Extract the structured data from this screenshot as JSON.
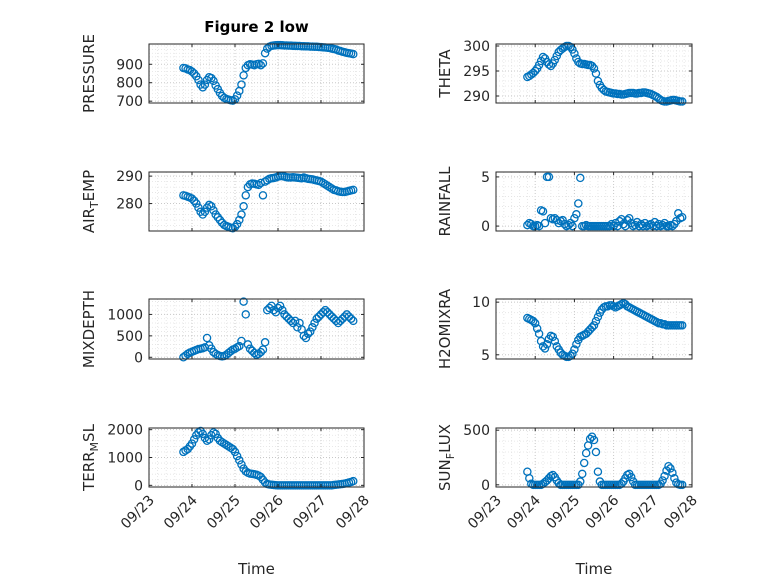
{
  "figure": {
    "title": "Figure 2 low",
    "xlabel": "Time",
    "marker_color": "#0072BD"
  },
  "chart_data": [
    {
      "type": "scatter",
      "id": "pressure",
      "title": "Figure 2 low",
      "ylabel": "PRESSURE",
      "xlim": [
        "09/23",
        "09/28"
      ],
      "ylim": [
        690,
        1010
      ],
      "yticks": [
        700,
        800,
        900
      ],
      "x_days": [
        0.8,
        0.85,
        0.9,
        0.95,
        1.0,
        1.05,
        1.1,
        1.15,
        1.2,
        1.25,
        1.3,
        1.35,
        1.4,
        1.45,
        1.5,
        1.55,
        1.6,
        1.65,
        1.7,
        1.75,
        1.8,
        1.85,
        1.9,
        1.95,
        2.0,
        2.05,
        2.1,
        2.15,
        2.2,
        2.25,
        2.3,
        2.35,
        2.4,
        2.45,
        2.5,
        2.55,
        2.6,
        2.65,
        2.7,
        2.75,
        2.8,
        2.85,
        2.9,
        2.95,
        3.0,
        3.05,
        3.1,
        3.15,
        3.2,
        3.25,
        3.3,
        3.35,
        3.4,
        3.45,
        3.5,
        3.55,
        3.6,
        3.65,
        3.7,
        3.75,
        3.8,
        3.85,
        3.9,
        3.95,
        4.0,
        4.05,
        4.1,
        4.15,
        4.2,
        4.25,
        4.3,
        4.35,
        4.4,
        4.45,
        4.5,
        4.55,
        4.6,
        4.65,
        4.7,
        4.75
      ],
      "y": [
        880,
        878,
        872,
        868,
        860,
        850,
        835,
        815,
        790,
        775,
        790,
        815,
        830,
        825,
        810,
        785,
        765,
        745,
        728,
        718,
        712,
        708,
        705,
        703,
        710,
        730,
        755,
        790,
        840,
        880,
        895,
        900,
        898,
        895,
        900,
        902,
        895,
        905,
        960,
        985,
        995,
        1000,
        1002,
        1003,
        1004,
        1004,
        1003,
        1002,
        1002,
        1001,
        1001,
        1000,
        1000,
        999,
        999,
        998,
        998,
        997,
        997,
        996,
        996,
        995,
        995,
        994,
        993,
        992,
        991,
        990,
        988,
        985,
        983,
        980,
        975,
        972,
        968,
        965,
        962,
        960,
        958,
        955
      ]
    },
    {
      "type": "scatter",
      "id": "theta",
      "ylabel": "THETA",
      "xlim": [
        "09/23",
        "09/28"
      ],
      "ylim": [
        288.6,
        300.4
      ],
      "yticks": [
        290,
        295,
        300
      ],
      "x_days": [
        0.8,
        0.85,
        0.9,
        0.95,
        1.0,
        1.05,
        1.1,
        1.15,
        1.2,
        1.25,
        1.3,
        1.35,
        1.4,
        1.45,
        1.5,
        1.55,
        1.6,
        1.65,
        1.7,
        1.75,
        1.8,
        1.85,
        1.9,
        1.95,
        2.0,
        2.05,
        2.1,
        2.15,
        2.2,
        2.25,
        2.3,
        2.35,
        2.4,
        2.45,
        2.5,
        2.55,
        2.6,
        2.65,
        2.7,
        2.75,
        2.8,
        2.85,
        2.9,
        2.95,
        3.0,
        3.05,
        3.1,
        3.15,
        3.2,
        3.25,
        3.3,
        3.35,
        3.4,
        3.45,
        3.5,
        3.55,
        3.6,
        3.65,
        3.7,
        3.75,
        3.8,
        3.85,
        3.9,
        3.95,
        4.0,
        4.05,
        4.1,
        4.15,
        4.2,
        4.25,
        4.3,
        4.35,
        4.4,
        4.45,
        4.5,
        4.55,
        4.6,
        4.65,
        4.7,
        4.75
      ],
      "y": [
        293.8,
        294.0,
        294.3,
        294.6,
        295.0,
        295.5,
        296.2,
        297.0,
        297.8,
        297.5,
        296.8,
        296.3,
        296.0,
        296.5,
        297.2,
        298.0,
        298.8,
        299.2,
        299.5,
        299.8,
        300.0,
        300.0,
        299.8,
        299.3,
        298.5,
        297.5,
        296.8,
        296.5,
        296.4,
        296.4,
        296.3,
        296.2,
        296.2,
        296.0,
        295.5,
        294.5,
        293.0,
        292.2,
        291.6,
        291.2,
        290.9,
        290.8,
        290.7,
        290.6,
        290.5,
        290.5,
        290.4,
        290.4,
        290.3,
        290.3,
        290.4,
        290.5,
        290.6,
        290.6,
        290.6,
        290.5,
        290.5,
        290.6,
        290.6,
        290.7,
        290.7,
        290.6,
        290.5,
        290.4,
        290.2,
        290.0,
        289.8,
        289.5,
        289.2,
        289.0,
        288.9,
        288.9,
        289.0,
        289.1,
        289.2,
        289.2,
        289.1,
        289.0,
        288.9,
        288.9
      ]
    },
    {
      "type": "scatter",
      "id": "air-temp",
      "ylabel": "AIR_TEMP",
      "xlim": [
        "09/23",
        "09/28"
      ],
      "ylim": [
        270,
        291.5
      ],
      "yticks": [
        280,
        290
      ],
      "x_days": [
        0.8,
        0.85,
        0.9,
        0.95,
        1.0,
        1.05,
        1.1,
        1.15,
        1.2,
        1.25,
        1.3,
        1.35,
        1.4,
        1.45,
        1.5,
        1.55,
        1.6,
        1.65,
        1.7,
        1.75,
        1.8,
        1.85,
        1.9,
        1.95,
        2.0,
        2.05,
        2.1,
        2.15,
        2.2,
        2.25,
        2.3,
        2.35,
        2.4,
        2.45,
        2.5,
        2.55,
        2.6,
        2.65,
        2.7,
        2.75,
        2.8,
        2.85,
        2.9,
        2.95,
        3.0,
        3.05,
        3.1,
        3.15,
        3.2,
        3.25,
        3.3,
        3.35,
        3.4,
        3.45,
        3.5,
        3.55,
        3.6,
        3.65,
        3.7,
        3.75,
        3.8,
        3.85,
        3.9,
        3.95,
        4.0,
        4.05,
        4.1,
        4.15,
        4.2,
        4.25,
        4.3,
        4.35,
        4.4,
        4.45,
        4.5,
        4.55,
        4.6,
        4.65,
        4.7,
        4.75
      ],
      "y": [
        283.0,
        282.8,
        282.5,
        282.2,
        281.8,
        281.0,
        280.0,
        278.5,
        277.0,
        276.0,
        277.0,
        278.5,
        279.5,
        279.0,
        277.5,
        276.0,
        275.0,
        274.0,
        273.0,
        272.2,
        271.8,
        271.5,
        271.2,
        271.0,
        271.5,
        272.5,
        274.0,
        276.0,
        279.0,
        283.0,
        286.0,
        287.0,
        287.3,
        287.2,
        287.0,
        286.8,
        287.5,
        283.0,
        288.0,
        288.5,
        289.0,
        289.2,
        289.3,
        289.5,
        289.8,
        290.0,
        290.0,
        289.8,
        289.6,
        289.5,
        289.5,
        289.6,
        289.5,
        289.4,
        289.3,
        289.2,
        289.5,
        289.2,
        289.0,
        288.9,
        288.8,
        288.6,
        288.4,
        288.2,
        288.0,
        287.5,
        287.0,
        286.5,
        286.0,
        285.5,
        285.0,
        284.8,
        284.5,
        284.3,
        284.2,
        284.2,
        284.4,
        284.6,
        284.8,
        285.0
      ]
    },
    {
      "type": "scatter",
      "id": "rainfall",
      "ylabel": "RAINFALL",
      "xlim": [
        "09/23",
        "09/28"
      ],
      "ylim": [
        -0.5,
        5.5
      ],
      "yticks": [
        0,
        5
      ],
      "x_days": [
        0.8,
        0.85,
        0.9,
        0.95,
        1.0,
        1.05,
        1.1,
        1.15,
        1.2,
        1.25,
        1.3,
        1.35,
        1.4,
        1.45,
        1.5,
        1.55,
        1.6,
        1.65,
        1.7,
        1.75,
        1.8,
        1.85,
        1.9,
        1.95,
        2.0,
        2.05,
        2.1,
        2.15,
        2.2,
        2.25,
        2.3,
        2.35,
        2.4,
        2.45,
        2.5,
        2.55,
        2.6,
        2.65,
        2.7,
        2.75,
        2.8,
        2.85,
        2.9,
        2.95,
        3.0,
        3.05,
        3.1,
        3.15,
        3.2,
        3.25,
        3.3,
        3.35,
        3.4,
        3.45,
        3.5,
        3.55,
        3.6,
        3.65,
        3.7,
        3.75,
        3.8,
        3.85,
        3.9,
        3.95,
        4.0,
        4.05,
        4.1,
        4.15,
        4.2,
        4.25,
        4.3,
        4.35,
        4.4,
        4.45,
        4.5,
        4.55,
        4.6,
        4.65,
        4.7,
        4.75
      ],
      "y": [
        0.1,
        0.3,
        0.2,
        0.0,
        0.0,
        0.1,
        0.0,
        1.6,
        1.5,
        0.3,
        5.0,
        5.0,
        0.8,
        0.7,
        0.8,
        0.6,
        0.3,
        0.5,
        0.6,
        0.2,
        0.0,
        0.1,
        0.3,
        0.0,
        0.8,
        1.2,
        2.3,
        4.9,
        0.0,
        0.0,
        0.1,
        0.0,
        0.0,
        0.0,
        0.0,
        0.0,
        0.0,
        0.0,
        0.0,
        0.0,
        0.0,
        0.0,
        0.0,
        0.2,
        0.0,
        0.3,
        0.0,
        0.5,
        0.7,
        0.2,
        0.0,
        0.6,
        0.8,
        0.3,
        0.0,
        0.1,
        0.4,
        0.0,
        0.2,
        0.0,
        0.3,
        0.0,
        0.1,
        0.2,
        0.0,
        0.4,
        0.0,
        0.2,
        0.0,
        0.1,
        0.3,
        0.0,
        0.0,
        0.1,
        0.0,
        0.2,
        0.5,
        1.3,
        0.8,
        0.9
      ]
    },
    {
      "type": "scatter",
      "id": "mixdepth",
      "ylabel": "MIXDEPTH",
      "xlim": [
        "09/23",
        "09/28"
      ],
      "ylim": [
        -40,
        1360
      ],
      "yticks": [
        0,
        500,
        1000
      ],
      "x_days": [
        0.8,
        0.85,
        0.9,
        0.95,
        1.0,
        1.05,
        1.1,
        1.15,
        1.2,
        1.25,
        1.3,
        1.35,
        1.4,
        1.45,
        1.5,
        1.55,
        1.6,
        1.65,
        1.7,
        1.75,
        1.8,
        1.85,
        1.9,
        1.95,
        2.0,
        2.05,
        2.1,
        2.15,
        2.2,
        2.25,
        2.3,
        2.35,
        2.4,
        2.45,
        2.5,
        2.55,
        2.6,
        2.65,
        2.7,
        2.75,
        2.8,
        2.85,
        2.9,
        2.95,
        3.0,
        3.05,
        3.1,
        3.15,
        3.2,
        3.25,
        3.3,
        3.35,
        3.4,
        3.45,
        3.5,
        3.55,
        3.6,
        3.65,
        3.7,
        3.75,
        3.8,
        3.85,
        3.9,
        3.95,
        4.0,
        4.05,
        4.1,
        4.15,
        4.2,
        4.25,
        4.3,
        4.35,
        4.4,
        4.45,
        4.5,
        4.55,
        4.6,
        4.65,
        4.7,
        4.75
      ],
      "y": [
        0,
        40,
        80,
        110,
        130,
        150,
        170,
        190,
        200,
        210,
        230,
        450,
        280,
        200,
        120,
        80,
        50,
        30,
        20,
        30,
        60,
        100,
        140,
        180,
        200,
        230,
        260,
        380,
        1300,
        1000,
        300,
        200,
        150,
        100,
        60,
        80,
        120,
        180,
        350,
        1100,
        1150,
        1200,
        1100,
        1050,
        1150,
        1200,
        1100,
        1000,
        950,
        900,
        850,
        800,
        850,
        700,
        800,
        650,
        500,
        450,
        550,
        600,
        700,
        800,
        900,
        950,
        1000,
        1050,
        1100,
        1050,
        1000,
        950,
        900,
        850,
        800,
        850,
        900,
        950,
        1000,
        950,
        900,
        850
      ]
    },
    {
      "type": "scatter",
      "id": "h2omixra",
      "ylabel": "H2OMIXRA",
      "xlim": [
        "09/23",
        "09/28"
      ],
      "ylim": [
        4.6,
        10.3
      ],
      "yticks": [
        5,
        10
      ],
      "x_days": [
        0.8,
        0.85,
        0.9,
        0.95,
        1.0,
        1.05,
        1.1,
        1.15,
        1.2,
        1.25,
        1.3,
        1.35,
        1.4,
        1.45,
        1.5,
        1.55,
        1.6,
        1.65,
        1.7,
        1.75,
        1.8,
        1.85,
        1.9,
        1.95,
        2.0,
        2.05,
        2.1,
        2.15,
        2.2,
        2.25,
        2.3,
        2.35,
        2.4,
        2.45,
        2.5,
        2.55,
        2.6,
        2.65,
        2.7,
        2.75,
        2.8,
        2.85,
        2.9,
        2.95,
        3.0,
        3.05,
        3.1,
        3.15,
        3.2,
        3.25,
        3.3,
        3.35,
        3.4,
        3.45,
        3.5,
        3.55,
        3.6,
        3.65,
        3.7,
        3.75,
        3.8,
        3.85,
        3.9,
        3.95,
        4.0,
        4.05,
        4.1,
        4.15,
        4.2,
        4.25,
        4.3,
        4.35,
        4.4,
        4.45,
        4.5,
        4.55,
        4.6,
        4.65,
        4.7,
        4.75
      ],
      "y": [
        8.5,
        8.4,
        8.3,
        8.2,
        8.0,
        7.5,
        7.0,
        6.3,
        5.8,
        5.6,
        6.0,
        6.5,
        6.8,
        6.7,
        6.3,
        5.8,
        5.5,
        5.2,
        5.0,
        4.9,
        4.8,
        4.8,
        4.9,
        5.1,
        5.5,
        6.0,
        6.4,
        6.7,
        6.8,
        6.9,
        7.0,
        7.2,
        7.4,
        7.6,
        7.8,
        8.2,
        8.6,
        9.0,
        9.3,
        9.5,
        9.6,
        9.6,
        9.7,
        9.7,
        9.6,
        9.5,
        9.6,
        9.7,
        9.8,
        9.9,
        9.8,
        9.6,
        9.5,
        9.4,
        9.3,
        9.2,
        9.1,
        9.0,
        8.9,
        8.8,
        8.7,
        8.6,
        8.5,
        8.4,
        8.3,
        8.2,
        8.1,
        8.0,
        8.0,
        7.9,
        7.9,
        7.8,
        7.8,
        7.8,
        7.8,
        7.8,
        7.8,
        7.8,
        7.8,
        7.8
      ]
    },
    {
      "type": "scatter",
      "id": "terr-msl",
      "ylabel": "TERR_MSL",
      "xlim": [
        "09/23",
        "09/28"
      ],
      "ylim": [
        -60,
        2060
      ],
      "yticks": [
        0,
        1000,
        2000
      ],
      "x_days": [
        0.8,
        0.85,
        0.9,
        0.95,
        1.0,
        1.05,
        1.1,
        1.15,
        1.2,
        1.25,
        1.3,
        1.35,
        1.4,
        1.45,
        1.5,
        1.55,
        1.6,
        1.65,
        1.7,
        1.75,
        1.8,
        1.85,
        1.9,
        1.95,
        2.0,
        2.05,
        2.1,
        2.15,
        2.2,
        2.25,
        2.3,
        2.35,
        2.4,
        2.45,
        2.5,
        2.55,
        2.6,
        2.65,
        2.7,
        2.75,
        2.8,
        2.85,
        2.9,
        2.95,
        3.0,
        3.05,
        3.1,
        3.15,
        3.2,
        3.25,
        3.3,
        3.35,
        3.4,
        3.45,
        3.5,
        3.55,
        3.6,
        3.65,
        3.7,
        3.75,
        3.8,
        3.85,
        3.9,
        3.95,
        4.0,
        4.05,
        4.1,
        4.15,
        4.2,
        4.25,
        4.3,
        4.35,
        4.4,
        4.45,
        4.5,
        4.55,
        4.6,
        4.65,
        4.7,
        4.75
      ],
      "y": [
        1200,
        1250,
        1300,
        1400,
        1500,
        1650,
        1800,
        1900,
        1950,
        1850,
        1700,
        1600,
        1650,
        1800,
        1900,
        1850,
        1700,
        1600,
        1550,
        1500,
        1450,
        1400,
        1350,
        1300,
        1200,
        1050,
        900,
        750,
        600,
        500,
        450,
        420,
        410,
        400,
        380,
        350,
        300,
        200,
        100,
        50,
        30,
        20,
        10,
        5,
        0,
        0,
        0,
        0,
        0,
        0,
        0,
        0,
        0,
        0,
        0,
        0,
        0,
        0,
        0,
        0,
        0,
        0,
        0,
        0,
        0,
        0,
        0,
        0,
        0,
        0,
        10,
        20,
        30,
        40,
        50,
        60,
        80,
        100,
        120,
        150
      ]
    },
    {
      "type": "scatter",
      "id": "sun-flux",
      "ylabel": "SUN_FLUX",
      "xlim": [
        "09/23",
        "09/28"
      ],
      "ylim": [
        -20,
        520
      ],
      "yticks": [
        0,
        500
      ],
      "x_days": [
        0.8,
        0.85,
        0.9,
        0.95,
        1.0,
        1.05,
        1.1,
        1.15,
        1.2,
        1.25,
        1.3,
        1.35,
        1.4,
        1.45,
        1.5,
        1.55,
        1.6,
        1.65,
        1.7,
        1.75,
        1.8,
        1.85,
        1.9,
        1.95,
        2.0,
        2.05,
        2.1,
        2.15,
        2.2,
        2.25,
        2.3,
        2.35,
        2.4,
        2.45,
        2.5,
        2.55,
        2.6,
        2.65,
        2.7,
        2.75,
        2.8,
        2.85,
        2.9,
        2.95,
        3.0,
        3.05,
        3.1,
        3.15,
        3.2,
        3.25,
        3.3,
        3.35,
        3.4,
        3.45,
        3.5,
        3.55,
        3.6,
        3.65,
        3.7,
        3.75,
        3.8,
        3.85,
        3.9,
        3.95,
        4.0,
        4.05,
        4.1,
        4.15,
        4.2,
        4.25,
        4.3,
        4.35,
        4.4,
        4.45,
        4.5,
        4.55,
        4.6,
        4.65,
        4.7,
        4.75
      ],
      "y": [
        120,
        60,
        10,
        0,
        0,
        0,
        0,
        0,
        10,
        25,
        40,
        60,
        80,
        90,
        70,
        40,
        15,
        0,
        0,
        0,
        0,
        0,
        0,
        0,
        0,
        0,
        0,
        30,
        100,
        200,
        290,
        360,
        420,
        440,
        410,
        300,
        120,
        30,
        0,
        0,
        0,
        0,
        0,
        0,
        0,
        0,
        0,
        0,
        10,
        30,
        60,
        90,
        100,
        70,
        30,
        0,
        0,
        0,
        0,
        0,
        0,
        0,
        0,
        0,
        0,
        0,
        0,
        0,
        10,
        40,
        80,
        130,
        170,
        150,
        110,
        60,
        20,
        5,
        0,
        0
      ]
    }
  ]
}
